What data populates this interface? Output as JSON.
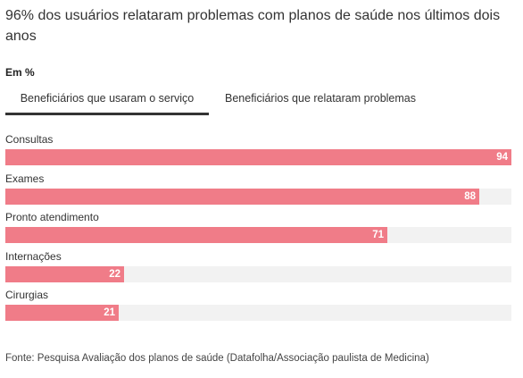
{
  "title": "96% dos usuários relataram problemas com planos de saúde nos últimos dois anos",
  "unit_label": "Em %",
  "tabs": [
    {
      "label": "Beneficiários que usaram o serviço",
      "active": true
    },
    {
      "label": "Beneficiários que relataram problemas",
      "active": false
    }
  ],
  "colors": {
    "bar": "#f07c88",
    "track": "#f2f2f2",
    "tab_underline": "#333333"
  },
  "chart_data": {
    "type": "bar",
    "orientation": "horizontal",
    "categories": [
      "Consultas",
      "Exames",
      "Pronto atendimento",
      "Internações",
      "Cirurgias"
    ],
    "values": [
      94,
      88,
      71,
      22,
      21
    ],
    "xlim": [
      0,
      94
    ],
    "grid": false
  },
  "source": "Fonte: Pesquisa Avaliação dos planos de saúde (Datafolha/Associação paulista de Medicina)"
}
